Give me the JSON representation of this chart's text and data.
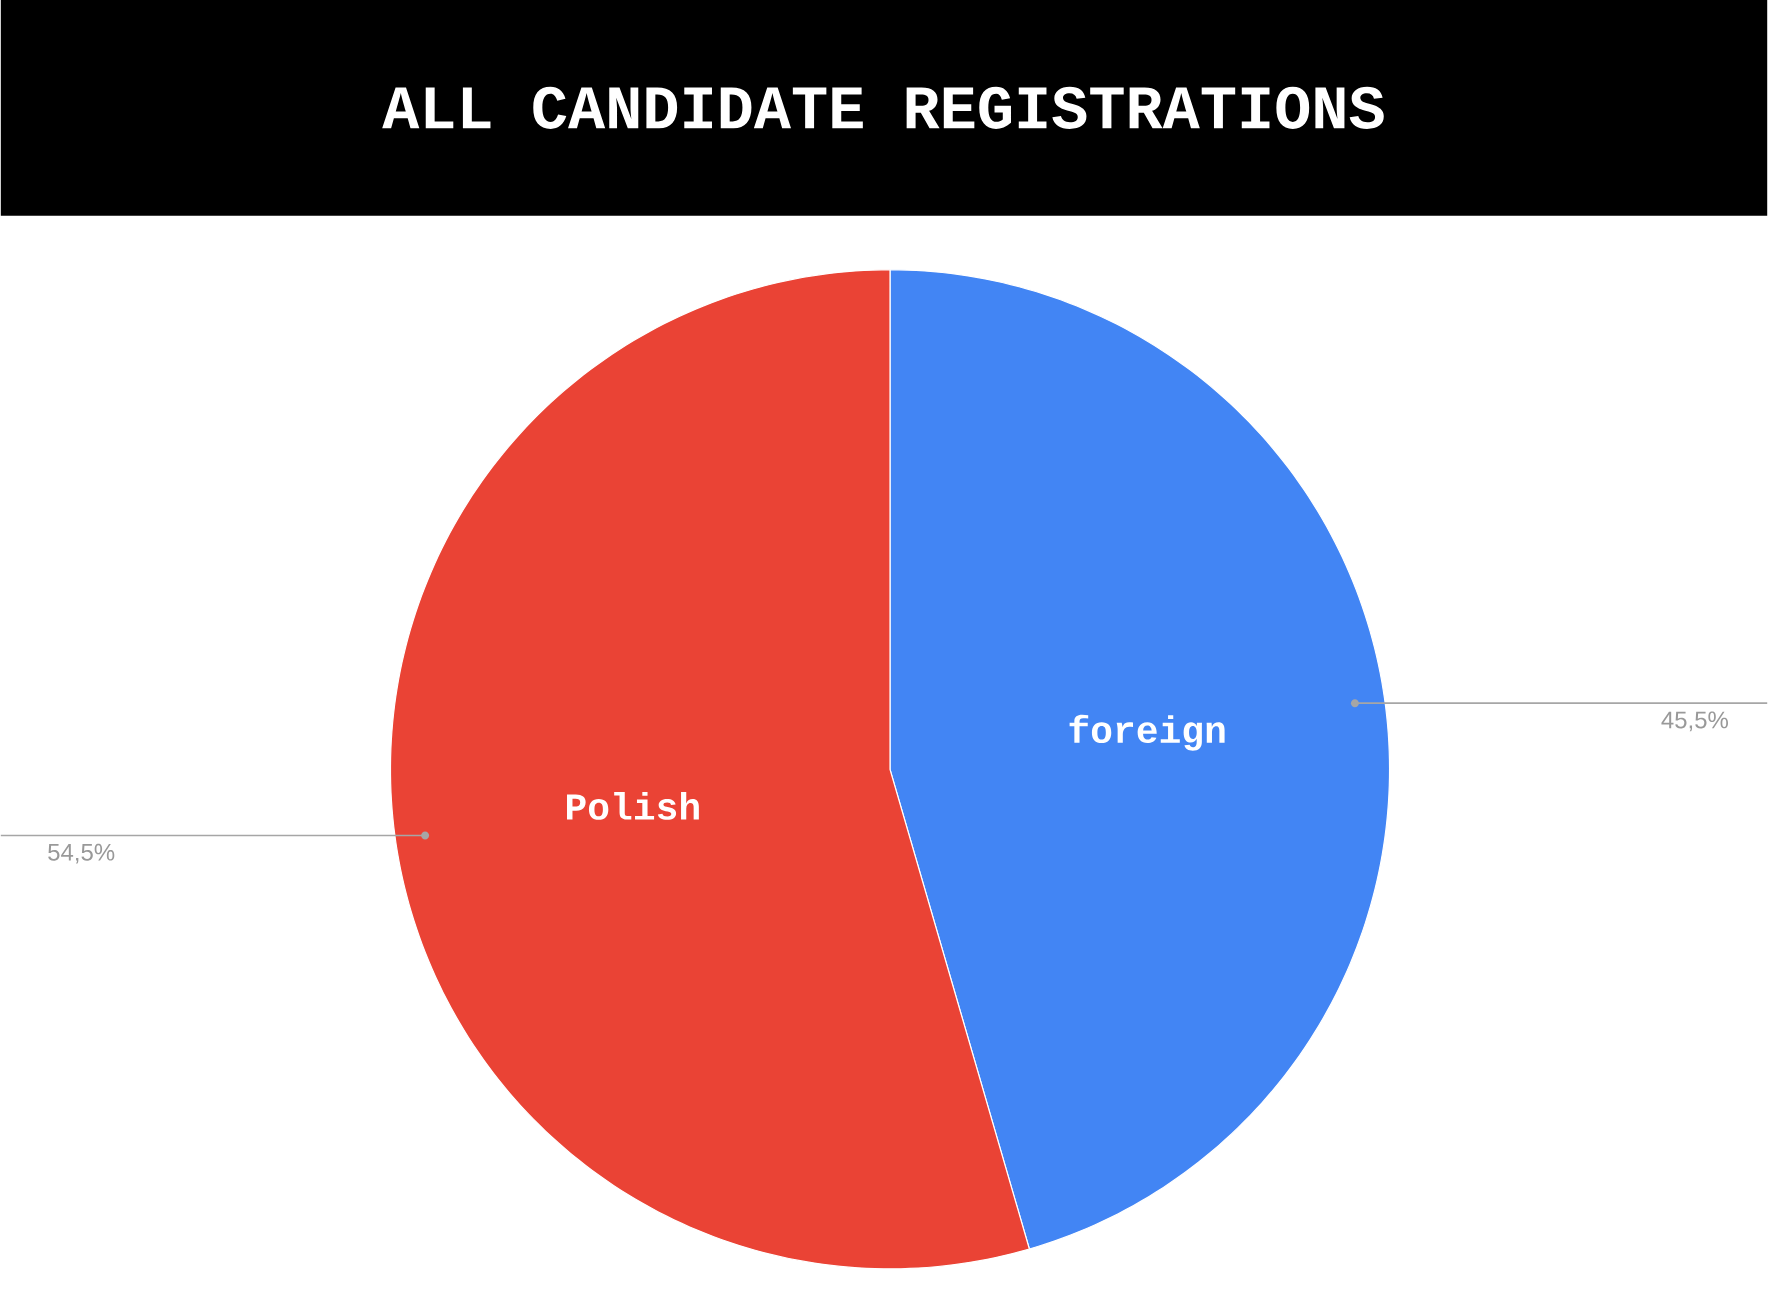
{
  "chart_data": {
    "type": "pie",
    "title": "ALL CANDIDATE REGISTRATIONS",
    "categories": [
      "foreign",
      "Polish"
    ],
    "values": [
      45.5,
      54.5
    ],
    "colors": [
      "#4285f4",
      "#ea4335"
    ],
    "value_labels": [
      "45,5%",
      "54,5%"
    ]
  }
}
